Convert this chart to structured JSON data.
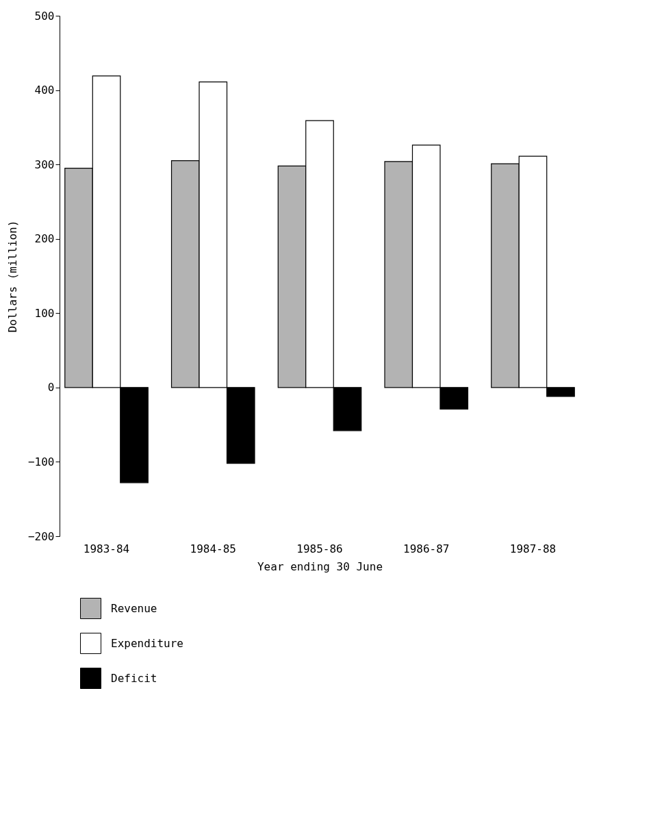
{
  "chart_data": {
    "type": "bar",
    "xlabel": "Year ending 30 June",
    "ylabel": "Dollars (million)",
    "categories": [
      "1983-84",
      "1984-85",
      "1985-86",
      "1986-87",
      "1987-88"
    ],
    "series": [
      {
        "name": "Revenue",
        "color": "#b3b3b3",
        "values": [
          295,
          305,
          298,
          304,
          301
        ]
      },
      {
        "name": "Expenditure",
        "color": "#ffffff",
        "values": [
          419,
          411,
          359,
          326,
          311
        ]
      },
      {
        "name": "Deficit",
        "color": "#000000",
        "values": [
          -128,
          -102,
          -58,
          -29,
          -12
        ]
      }
    ],
    "ylim": [
      -200,
      500
    ],
    "yticks": [
      -200,
      -100,
      0,
      100,
      200,
      300,
      400,
      500
    ],
    "grid": false,
    "legend": "bottom left"
  }
}
